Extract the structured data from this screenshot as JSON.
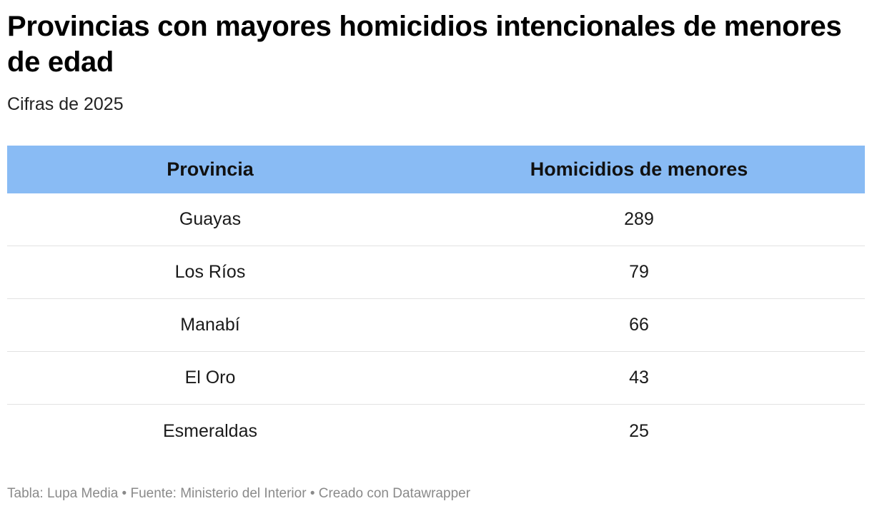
{
  "chart_data": {
    "type": "table",
    "title": "Provincias con mayores homicidios intencionales de menores de edad",
    "subtitle": "Cifras de 2025",
    "columns": [
      "Provincia",
      "Homicidios de menores"
    ],
    "rows": [
      {
        "provincia": "Guayas",
        "homicidios": "289"
      },
      {
        "provincia": "Los Ríos",
        "homicidios": "79"
      },
      {
        "provincia": "Manabí",
        "homicidios": "66"
      },
      {
        "provincia": "El Oro",
        "homicidios": "43"
      },
      {
        "provincia": "Esmeraldas",
        "homicidios": "25"
      }
    ],
    "header_color": "#89bbf4"
  },
  "footer": "Tabla: Lupa Media • Fuente: Ministerio del Interior • Creado con Datawrapper"
}
